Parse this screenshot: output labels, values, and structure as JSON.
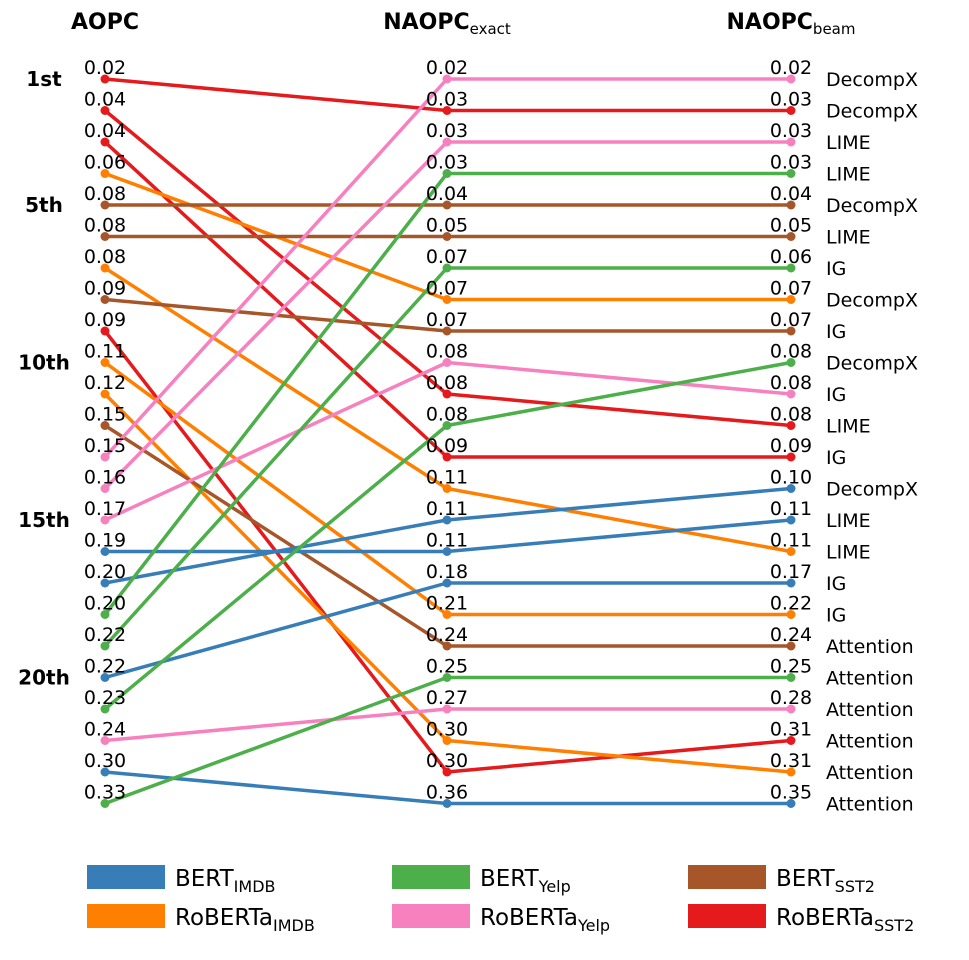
{
  "chart_data": {
    "type": "slope",
    "columns": [
      {
        "title": "AOPC",
        "sub": ""
      },
      {
        "title": "NAOPC",
        "sub": "exact"
      },
      {
        "title": "NAOPC",
        "sub": "beam"
      }
    ],
    "rank_labels": [
      {
        "label": "1st",
        "rank": 1
      },
      {
        "label": "5th",
        "rank": 5
      },
      {
        "label": "10th",
        "rank": 10
      },
      {
        "label": "15th",
        "rank": 15
      },
      {
        "label": "20th",
        "rank": 20
      }
    ],
    "rows": 24,
    "values": [
      [
        "0.02",
        "0.04",
        "0.04",
        "0.06",
        "0.08",
        "0.08",
        "0.08",
        "0.09",
        "0.09",
        "0.11",
        "0.12",
        "0.15",
        "0.15",
        "0.16",
        "0.17",
        "0.19",
        "0.20",
        "0.20",
        "0.22",
        "0.22",
        "0.23",
        "0.24",
        "0.30",
        "0.33"
      ],
      [
        "0.02",
        "0.03",
        "0.03",
        "0.03",
        "0.04",
        "0.05",
        "0.07",
        "0.07",
        "0.07",
        "0.08",
        "0.08",
        "0.08",
        "0.09",
        "0.11",
        "0.11",
        "0.11",
        "0.18",
        "0.21",
        "0.24",
        "0.25",
        "0.27",
        "0.30",
        "0.30",
        "0.36"
      ],
      [
        "0.02",
        "0.03",
        "0.03",
        "0.03",
        "0.04",
        "0.05",
        "0.06",
        "0.07",
        "0.07",
        "0.08",
        "0.08",
        "0.08",
        "0.09",
        "0.10",
        "0.11",
        "0.11",
        "0.17",
        "0.22",
        "0.24",
        "0.25",
        "0.28",
        "0.31",
        "0.31",
        "0.35"
      ]
    ],
    "methods": [
      "DecompX",
      "DecompX",
      "LIME",
      "LIME",
      "DecompX",
      "LIME",
      "IG",
      "DecompX",
      "IG",
      "DecompX",
      "IG",
      "LIME",
      "IG",
      "DecompX",
      "LIME",
      "LIME",
      "IG",
      "IG",
      "Attention",
      "Attention",
      "Attention",
      "Attention",
      "Attention",
      "Attention"
    ],
    "series_colors": {
      "BERT_IMDB": "#377eb8",
      "RoBERTa_IMDB": "#ff7f00",
      "BERT_Yelp": "#4daf4a",
      "RoBERTa_Yelp": "#f781bf",
      "BERT_SST2": "#a65628",
      "RoBERTa_SST2": "#e41a1c"
    },
    "lines": [
      {
        "series": "RoBERTa_SST2",
        "method": "DecompX",
        "ranks": [
          1,
          2,
          2
        ]
      },
      {
        "series": "RoBERTa_SST2",
        "method": "LIME",
        "ranks": [
          2,
          11,
          12
        ]
      },
      {
        "series": "RoBERTa_SST2",
        "method": "IG",
        "ranks": [
          3,
          13,
          13
        ]
      },
      {
        "series": "RoBERTa_IMDB",
        "method": "DecompX",
        "ranks": [
          4,
          8,
          8
        ]
      },
      {
        "series": "BERT_SST2",
        "method": "DecompX",
        "ranks": [
          5,
          5,
          5
        ]
      },
      {
        "series": "BERT_SST2",
        "method": "LIME",
        "ranks": [
          6,
          6,
          6
        ]
      },
      {
        "series": "RoBERTa_IMDB",
        "method": "LIME",
        "ranks": [
          7,
          14,
          16
        ]
      },
      {
        "series": "BERT_SST2",
        "method": "IG",
        "ranks": [
          8,
          9,
          9
        ]
      },
      {
        "series": "RoBERTa_SST2",
        "method": "Attention",
        "ranks": [
          9,
          23,
          22
        ]
      },
      {
        "series": "RoBERTa_IMDB",
        "method": "IG",
        "ranks": [
          10,
          18,
          18
        ]
      },
      {
        "series": "RoBERTa_IMDB",
        "method": "Attention",
        "ranks": [
          11,
          22,
          23
        ]
      },
      {
        "series": "BERT_SST2",
        "method": "Attention",
        "ranks": [
          12,
          19,
          19
        ]
      },
      {
        "series": "RoBERTa_Yelp",
        "method": "DecompX",
        "ranks": [
          13,
          1,
          1
        ]
      },
      {
        "series": "RoBERTa_Yelp",
        "method": "LIME",
        "ranks": [
          14,
          3,
          3
        ]
      },
      {
        "series": "RoBERTa_Yelp",
        "method": "IG",
        "ranks": [
          15,
          10,
          11
        ]
      },
      {
        "series": "BERT_IMDB",
        "method": "LIME",
        "ranks": [
          16,
          16,
          15
        ]
      },
      {
        "series": "BERT_IMDB",
        "method": "DecompX",
        "ranks": [
          17,
          15,
          14
        ]
      },
      {
        "series": "BERT_Yelp",
        "method": "LIME",
        "ranks": [
          18,
          4,
          4
        ]
      },
      {
        "series": "BERT_Yelp",
        "method": "IG",
        "ranks": [
          19,
          7,
          7
        ]
      },
      {
        "series": "BERT_IMDB",
        "method": "IG",
        "ranks": [
          20,
          17,
          17
        ]
      },
      {
        "series": "BERT_Yelp",
        "method": "DecompX",
        "ranks": [
          21,
          12,
          10
        ]
      },
      {
        "series": "RoBERTa_Yelp",
        "method": "Attention",
        "ranks": [
          22,
          21,
          21
        ]
      },
      {
        "series": "BERT_IMDB",
        "method": "Attention",
        "ranks": [
          23,
          24,
          24
        ]
      },
      {
        "series": "BERT_Yelp",
        "method": "Attention",
        "ranks": [
          24,
          20,
          20
        ]
      }
    ],
    "legend": [
      {
        "key": "BERT_IMDB",
        "name": "BERT",
        "sub": "IMDB",
        "color": "#377eb8"
      },
      {
        "key": "BERT_Yelp",
        "name": "BERT",
        "sub": "Yelp",
        "color": "#4daf4a"
      },
      {
        "key": "BERT_SST2",
        "name": "BERT",
        "sub": "SST2",
        "color": "#a65628"
      },
      {
        "key": "RoBERTa_IMDB",
        "name": "RoBERTa",
        "sub": "IMDB",
        "color": "#ff7f00"
      },
      {
        "key": "RoBERTa_Yelp",
        "name": "RoBERTa",
        "sub": "Yelp",
        "color": "#f781bf"
      },
      {
        "key": "RoBERTa_SST2",
        "name": "RoBERTa",
        "sub": "SST2",
        "color": "#e41a1c"
      }
    ],
    "legend_position": "bottom"
  }
}
